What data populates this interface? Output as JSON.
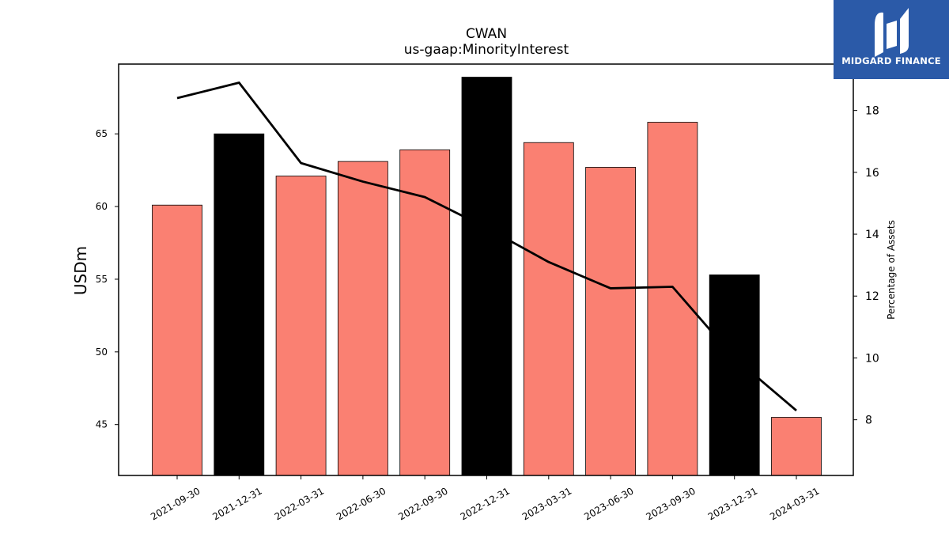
{
  "chart_data": {
    "type": "bar",
    "title": "CWAN",
    "subtitle": "us-gaap:MinorityInterest",
    "ylabel": "USDm",
    "y2label": "Percentage of Assets",
    "categories": [
      "2021-09-30",
      "2021-12-31",
      "2022-03-31",
      "2022-06-30",
      "2022-09-30",
      "2022-12-31",
      "2023-03-31",
      "2023-06-30",
      "2023-09-30",
      "2023-12-31",
      "2024-03-31"
    ],
    "series": [
      {
        "values": [
          60.1,
          65.0,
          62.1,
          63.1,
          63.9,
          68.9,
          64.4,
          62.7,
          65.8,
          55.3,
          45.5
        ],
        "colors": [
          "#fa8072",
          "#000000",
          "#fa8072",
          "#fa8072",
          "#fa8072",
          "#000000",
          "#fa8072",
          "#fa8072",
          "#fa8072",
          "#000000",
          "#fa8072"
        ]
      },
      {
        "axis": "right",
        "values": [
          18.4,
          18.9,
          16.3,
          15.7,
          15.2,
          14.2,
          13.1,
          12.25,
          12.3,
          10.0,
          8.3
        ]
      }
    ],
    "ylim": [
      41.5,
      69.8
    ],
    "y2lim": [
      6.2,
      19.5
    ],
    "yticks": [
      45,
      50,
      55,
      60,
      65
    ],
    "y2ticks": [
      8,
      10,
      12,
      14,
      16,
      18
    ]
  },
  "brand": {
    "name": "MIDGARD FINANCE"
  }
}
